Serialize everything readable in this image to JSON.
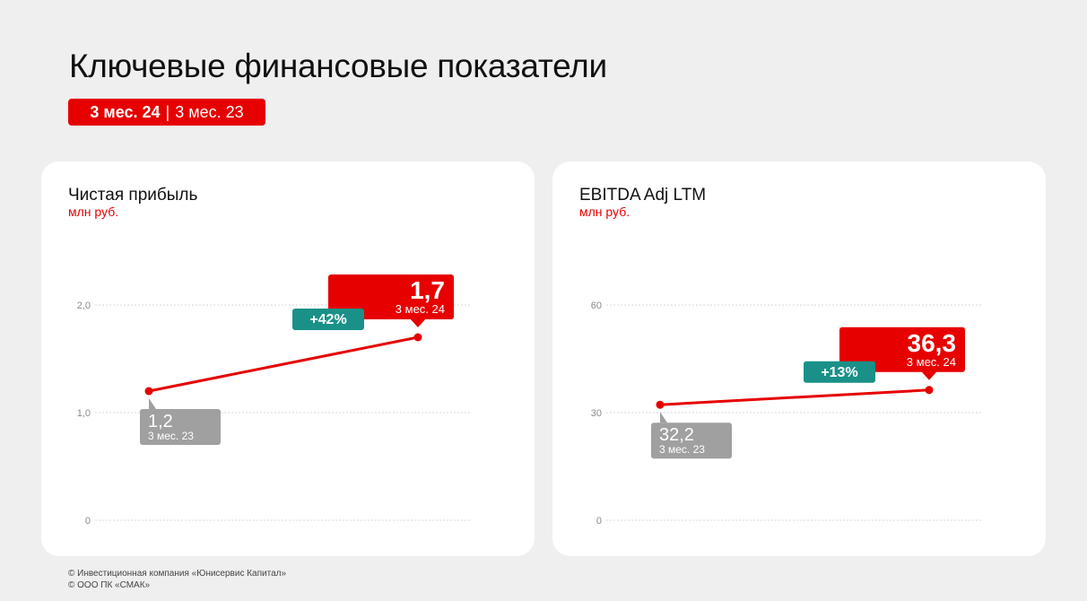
{
  "page": {
    "title": "Ключевые финансовые показатели",
    "period_badge": {
      "current": "3 мес. 24",
      "separator": "|",
      "previous": "3 мес. 23"
    }
  },
  "colors": {
    "accent": "#e60000",
    "growth": "#1a9188",
    "previous": "#a0a0a0"
  },
  "chart_data": [
    {
      "type": "line",
      "title": "Чистая прибыль",
      "unit": "млн руб.",
      "y_ticks": [
        "0",
        "1,0",
        "2,0"
      ],
      "ylim": [
        0,
        2.0
      ],
      "categories": [
        "3 мес. 23",
        "3 мес. 24"
      ],
      "values": [
        1.2,
        1.7
      ],
      "value_labels": [
        "1,2",
        "1,7"
      ],
      "change_label": "+42%",
      "grid": true
    },
    {
      "type": "line",
      "title": "EBITDA Adj LTM",
      "unit": "млн руб.",
      "y_ticks": [
        "0",
        "30",
        "60"
      ],
      "ylim": [
        0,
        60
      ],
      "categories": [
        "3 мес. 23",
        "3 мес. 24"
      ],
      "values": [
        32.2,
        36.3
      ],
      "value_labels": [
        "32,2",
        "36,3"
      ],
      "change_label": "+13%",
      "grid": true
    }
  ],
  "footer": {
    "line1": "© Инвестиционная компания «Юнисервис Капитал»",
    "line2": "© ООО ПК «СМАК»"
  }
}
